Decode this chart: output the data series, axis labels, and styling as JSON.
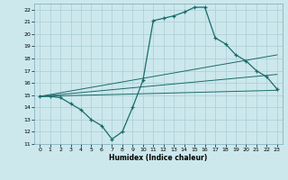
{
  "xlabel": "Humidex (Indice chaleur)",
  "bg_color": "#cce8ec",
  "line_color": "#1a6b6b",
  "grid_color": "#b0d0d8",
  "xlim": [
    -0.5,
    23.5
  ],
  "ylim": [
    11,
    22.5
  ],
  "xticks": [
    0,
    1,
    2,
    3,
    4,
    5,
    6,
    7,
    8,
    9,
    10,
    11,
    12,
    13,
    14,
    15,
    16,
    17,
    18,
    19,
    20,
    21,
    22,
    23
  ],
  "yticks": [
    11,
    12,
    13,
    14,
    15,
    16,
    17,
    18,
    19,
    20,
    21,
    22
  ],
  "series1_x": [
    0,
    1,
    2,
    3,
    4,
    5,
    6,
    7,
    8,
    9,
    10,
    11,
    12,
    13,
    14,
    15,
    16,
    17,
    18,
    19,
    20,
    21,
    22,
    23
  ],
  "series1_y": [
    14.9,
    14.9,
    14.8,
    14.3,
    13.8,
    13.0,
    12.5,
    11.4,
    12.0,
    14.0,
    16.2,
    21.1,
    21.3,
    21.5,
    21.8,
    22.2,
    22.2,
    19.7,
    19.2,
    18.3,
    17.8,
    17.0,
    16.5,
    15.5
  ],
  "series2_x": [
    0,
    23
  ],
  "series2_y": [
    14.9,
    18.3
  ],
  "series3_x": [
    0,
    23
  ],
  "series3_y": [
    14.9,
    16.7
  ],
  "series4_x": [
    0,
    23
  ],
  "series4_y": [
    14.9,
    15.4
  ]
}
